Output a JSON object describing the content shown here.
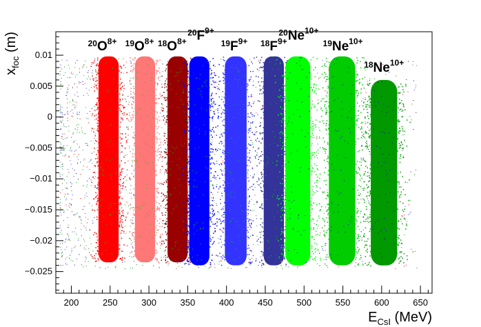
{
  "chart_data": {
    "type": "scatter",
    "title": "",
    "xlabel": {
      "base": "E",
      "sub": "CsI",
      "unit": " (MeV)"
    },
    "ylabel": {
      "base": "x",
      "sub": "foc",
      "unit": " (m)"
    },
    "xlim": [
      180,
      665
    ],
    "ylim": [
      -0.0285,
      0.0138
    ],
    "x_ticks": [
      200,
      250,
      300,
      350,
      400,
      450,
      500,
      550,
      600,
      650
    ],
    "x_tick_labels": [
      "200",
      "250",
      "300",
      "350",
      "400",
      "450",
      "500",
      "550",
      "600",
      "650"
    ],
    "y_ticks": [
      -0.025,
      -0.02,
      -0.015,
      -0.01,
      -0.005,
      0,
      0.005,
      0.01
    ],
    "y_tick_labels": [
      "−0.025",
      "−0.02",
      "−0.015",
      "−0.01",
      "−0.005",
      "0",
      "0.005",
      "0.01"
    ],
    "grid": false,
    "series": [
      {
        "name": "20O8+",
        "color": "#ff0000",
        "x_center": 248,
        "x_halfwidth": 13,
        "y_min": -0.0235,
        "y_max": 0.0098
      },
      {
        "name": "19O8+",
        "color": "#ff7777",
        "x_center": 295,
        "x_halfwidth": 13,
        "y_min": -0.0235,
        "y_max": 0.0098
      },
      {
        "name": "18O8+",
        "color": "#990000",
        "x_center": 337,
        "x_halfwidth": 13,
        "y_min": -0.0235,
        "y_max": 0.0098
      },
      {
        "name": "20F9+",
        "color": "#0000ff",
        "x_center": 365,
        "x_halfwidth": 13,
        "y_min": -0.024,
        "y_max": 0.0098
      },
      {
        "name": "19F9+",
        "color": "#3333ff",
        "x_center": 412,
        "x_halfwidth": 14,
        "y_min": -0.024,
        "y_max": 0.0098
      },
      {
        "name": "18F9+",
        "color": "#333399",
        "x_center": 461,
        "x_halfwidth": 13,
        "y_min": -0.024,
        "y_max": 0.0098
      },
      {
        "name": "20Ne10+",
        "color": "#00ff00",
        "x_center": 492,
        "x_halfwidth": 16,
        "y_min": -0.024,
        "y_max": 0.0098
      },
      {
        "name": "19Ne10+",
        "color": "#00cc00",
        "x_center": 549,
        "x_halfwidth": 17,
        "y_min": -0.024,
        "y_max": 0.0098
      },
      {
        "name": "18Ne10+",
        "color": "#009900",
        "x_center": 603,
        "x_halfwidth": 17,
        "y_min": -0.024,
        "y_max": 0.006
      }
    ],
    "labels": [
      {
        "sup": "20",
        "main": "O",
        "charge": "8+",
        "x": 240,
        "y": 0.0108
      },
      {
        "sup": "19",
        "main": "O",
        "charge": "8+",
        "x": 288,
        "y": 0.0108
      },
      {
        "sup": "18",
        "main": "O",
        "charge": "8+",
        "x": 330,
        "y": 0.0108
      },
      {
        "sup": "20",
        "main": "F",
        "charge": "9+",
        "x": 367,
        "y": 0.0125
      },
      {
        "sup": "19",
        "main": "F",
        "charge": "9+",
        "x": 410,
        "y": 0.0108
      },
      {
        "sup": "18",
        "main": "F",
        "charge": "9+",
        "x": 461,
        "y": 0.0108
      },
      {
        "sup": "20",
        "main": "Ne",
        "charge": "10+",
        "x": 493,
        "y": 0.0125
      },
      {
        "sup": "19",
        "main": "Ne",
        "charge": "10+",
        "x": 550,
        "y": 0.0108
      },
      {
        "sup": "18",
        "main": "Ne",
        "charge": "10+",
        "x": 603,
        "y": 0.0073
      }
    ]
  }
}
